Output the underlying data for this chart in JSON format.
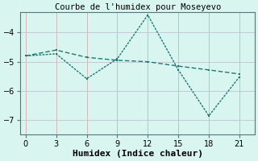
{
  "title": "Courbe de l'humidex pour Moseyevo",
  "xlabel": "Humidex (Indice chaleur)",
  "line1_x": [
    0,
    3,
    6,
    9,
    12,
    15,
    18,
    21
  ],
  "line1_y": [
    -4.8,
    -4.6,
    -4.85,
    -4.95,
    -5.0,
    -5.15,
    -5.28,
    -5.42
  ],
  "line2_x": [
    0,
    3,
    6,
    9,
    12,
    15,
    18,
    21
  ],
  "line2_y": [
    -4.8,
    -4.73,
    -5.58,
    -4.9,
    -3.4,
    -5.28,
    -6.85,
    -5.52
  ],
  "xlim": [
    -0.5,
    22.5
  ],
  "ylim": [
    -7.5,
    -3.3
  ],
  "xticks": [
    0,
    3,
    6,
    9,
    12,
    15,
    18,
    21
  ],
  "yticks": [
    -7,
    -6,
    -5,
    -4
  ],
  "line_color": "#1a7a72",
  "bg_color": "#d8f5f0",
  "h_grid_color": "#c8c8d8",
  "v_grid_color": "#d8b8b8",
  "title_fontsize": 7.5,
  "label_fontsize": 8,
  "tick_fontsize": 7
}
